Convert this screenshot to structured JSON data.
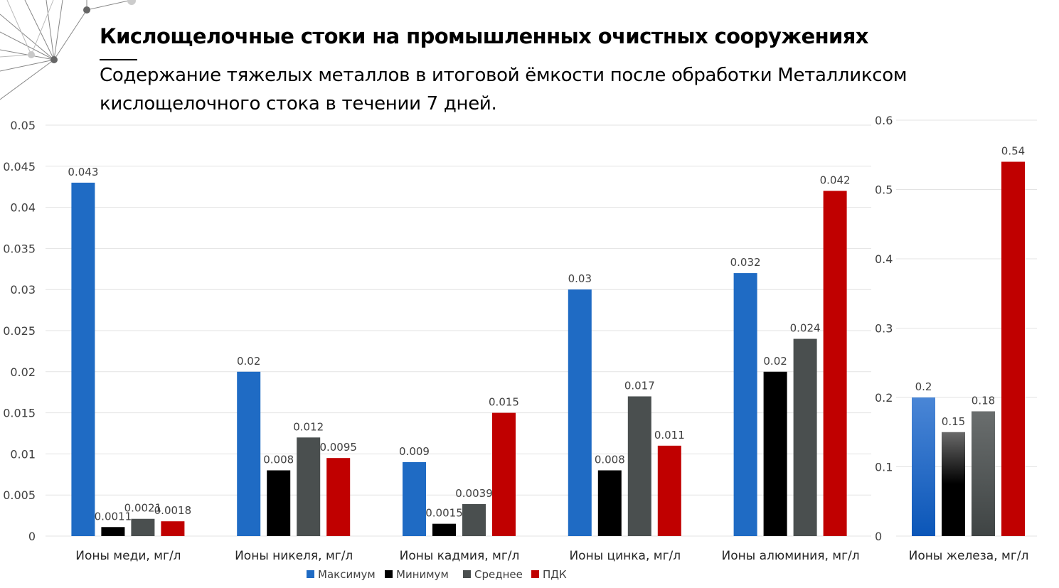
{
  "title": "Кислощелочные стоки на промышленных очистных сооружениях",
  "subtitle": "Содержание тяжелых металлов в итоговой ёмкости после обработки Металликсом кислощелочного стока в течении 7 дней.",
  "chart_data": [
    {
      "type": "bar",
      "categories": [
        "Ионы меди, мг/л",
        "Ионы никеля, мг/л",
        "Ионы кадмия, мг/л",
        "Ионы цинка, мг/л",
        "Ионы алюминия, мг/л"
      ],
      "series": [
        {
          "name": "Максимум",
          "color": "#1f6bc4",
          "values": [
            0.043,
            0.02,
            0.009,
            0.03,
            0.032
          ]
        },
        {
          "name": "Минимум",
          "color": "#000000",
          "values": [
            0.0011,
            0.008,
            0.0015,
            0.008,
            0.02
          ]
        },
        {
          "name": "Среднее",
          "color": "#4a4f4f",
          "values": [
            0.0021,
            0.012,
            0.0039,
            0.017,
            0.024
          ]
        },
        {
          "name": "ПДК",
          "color": "#c00000",
          "values": [
            0.0018,
            0.0095,
            0.015,
            0.011,
            0.042
          ]
        }
      ],
      "ylim": [
        0,
        0.05
      ],
      "yticks": [
        "0",
        "0.005",
        "0.01",
        "0.015",
        "0.02",
        "0.025",
        "0.03",
        "0.035",
        "0.04",
        "0.045",
        "0.05"
      ],
      "grid": true,
      "legend": "bottom"
    },
    {
      "type": "bar",
      "categories": [
        "Ионы железа, мг/л"
      ],
      "series": [
        {
          "name": "Максимум",
          "color": "#1f6bc4",
          "values": [
            0.2
          ]
        },
        {
          "name": "Минимум",
          "color": "#000000",
          "values": [
            0.15
          ]
        },
        {
          "name": "Среднее",
          "color": "#4a4f4f",
          "values": [
            0.18
          ]
        },
        {
          "name": "ПДК",
          "color": "#c00000",
          "values": [
            0.54
          ]
        }
      ],
      "ylim": [
        0,
        0.6
      ],
      "yticks": [
        "0",
        "0.1",
        "0.2",
        "0.3",
        "0.4",
        "0.5",
        "0.6"
      ],
      "grid": true
    }
  ]
}
